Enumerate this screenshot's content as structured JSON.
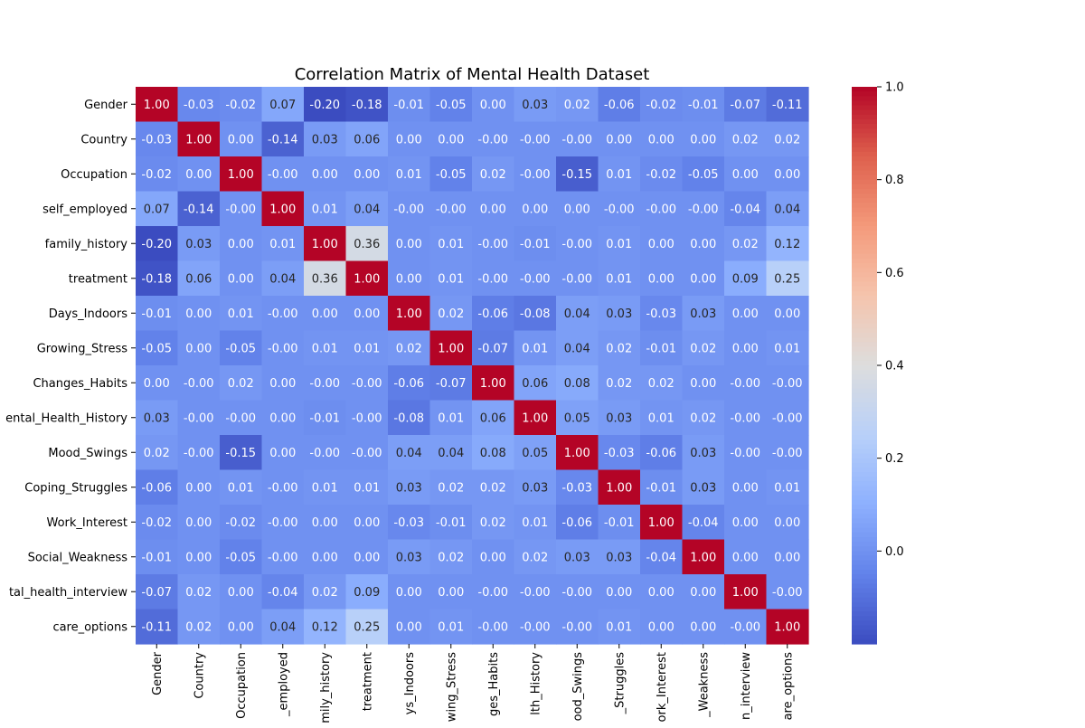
{
  "chart_data": {
    "type": "heatmap",
    "title": "Correlation Matrix of Mental Health Dataset",
    "row_labels": [
      "Gender",
      "Country",
      "Occupation",
      "self_employed",
      "family_history",
      "treatment",
      "Days_Indoors",
      "Growing_Stress",
      "Changes_Habits",
      "ental_Health_History",
      "Mood_Swings",
      "Coping_Struggles",
      "Work_Interest",
      "Social_Weakness",
      "tal_health_interview",
      "care_options"
    ],
    "col_labels": [
      "Gender",
      "Country",
      "Occupation",
      "_employed",
      "mily_history",
      "treatment",
      "ys_Indoors",
      "wing_Stress",
      "ges_Habits",
      "lth_History",
      "ood_Swings",
      "_Struggles",
      "ork_Interest",
      "_Weakness",
      "n_interview",
      "are_options"
    ],
    "values": [
      [
        1.0,
        -0.03,
        -0.02,
        0.07,
        -0.2,
        -0.18,
        -0.01,
        -0.05,
        0.0,
        0.03,
        0.02,
        -0.06,
        -0.02,
        -0.01,
        -0.07,
        -0.11
      ],
      [
        -0.03,
        1.0,
        0.0,
        -0.14,
        0.03,
        0.06,
        0.0,
        0.0,
        -0.0,
        -0.0,
        -0.0,
        0.0,
        0.0,
        0.0,
        0.02,
        0.02
      ],
      [
        -0.02,
        0.0,
        1.0,
        -0.0,
        0.0,
        0.0,
        0.01,
        -0.05,
        0.02,
        -0.0,
        -0.15,
        0.01,
        -0.02,
        -0.05,
        0.0,
        0.0
      ],
      [
        0.07,
        -0.14,
        -0.0,
        1.0,
        0.01,
        0.04,
        -0.0,
        -0.0,
        0.0,
        0.0,
        0.0,
        -0.0,
        -0.0,
        -0.0,
        -0.04,
        0.04
      ],
      [
        -0.2,
        0.03,
        0.0,
        0.01,
        1.0,
        0.36,
        0.0,
        0.01,
        -0.0,
        -0.01,
        -0.0,
        0.01,
        0.0,
        0.0,
        0.02,
        0.12
      ],
      [
        -0.18,
        0.06,
        0.0,
        0.04,
        0.36,
        1.0,
        0.0,
        0.01,
        -0.0,
        -0.0,
        -0.0,
        0.01,
        0.0,
        0.0,
        0.09,
        0.25
      ],
      [
        -0.01,
        0.0,
        0.01,
        -0.0,
        0.0,
        0.0,
        1.0,
        0.02,
        -0.06,
        -0.08,
        0.04,
        0.03,
        -0.03,
        0.03,
        0.0,
        0.0
      ],
      [
        -0.05,
        0.0,
        -0.05,
        -0.0,
        0.01,
        0.01,
        0.02,
        1.0,
        -0.07,
        0.01,
        0.04,
        0.02,
        -0.01,
        0.02,
        0.0,
        0.01
      ],
      [
        0.0,
        -0.0,
        0.02,
        0.0,
        -0.0,
        -0.0,
        -0.06,
        -0.07,
        1.0,
        0.06,
        0.08,
        0.02,
        0.02,
        0.0,
        -0.0,
        -0.0
      ],
      [
        0.03,
        -0.0,
        -0.0,
        0.0,
        -0.01,
        -0.0,
        -0.08,
        0.01,
        0.06,
        1.0,
        0.05,
        0.03,
        0.01,
        0.02,
        -0.0,
        -0.0
      ],
      [
        0.02,
        -0.0,
        -0.15,
        0.0,
        -0.0,
        -0.0,
        0.04,
        0.04,
        0.08,
        0.05,
        1.0,
        -0.03,
        -0.06,
        0.03,
        -0.0,
        -0.0
      ],
      [
        -0.06,
        0.0,
        0.01,
        -0.0,
        0.01,
        0.01,
        0.03,
        0.02,
        0.02,
        0.03,
        -0.03,
        1.0,
        -0.01,
        0.03,
        0.0,
        0.01
      ],
      [
        -0.02,
        0.0,
        -0.02,
        -0.0,
        0.0,
        0.0,
        -0.03,
        -0.01,
        0.02,
        0.01,
        -0.06,
        -0.01,
        1.0,
        -0.04,
        0.0,
        0.0
      ],
      [
        -0.01,
        0.0,
        -0.05,
        -0.0,
        0.0,
        0.0,
        0.03,
        0.02,
        0.0,
        0.02,
        0.03,
        0.03,
        -0.04,
        1.0,
        0.0,
        0.0
      ],
      [
        -0.07,
        0.02,
        0.0,
        -0.04,
        0.02,
        0.09,
        0.0,
        0.0,
        -0.0,
        -0.0,
        -0.0,
        0.0,
        0.0,
        0.0,
        1.0,
        -0.0
      ],
      [
        -0.11,
        0.02,
        0.0,
        0.04,
        0.12,
        0.25,
        0.0,
        0.01,
        -0.0,
        -0.0,
        -0.0,
        0.01,
        0.0,
        0.0,
        -0.0,
        1.0
      ]
    ],
    "colormap": "coolwarm",
    "vmin": -0.2,
    "vmax": 1.0,
    "colorbar_ticks": [
      "1.0",
      "0.8",
      "0.6",
      "0.4",
      "0.2",
      "0.0"
    ],
    "colorbar_tick_values": [
      1.0,
      0.8,
      0.6,
      0.4,
      0.2,
      0.0
    ],
    "annotation_format": "2 decimals",
    "grid": false
  }
}
